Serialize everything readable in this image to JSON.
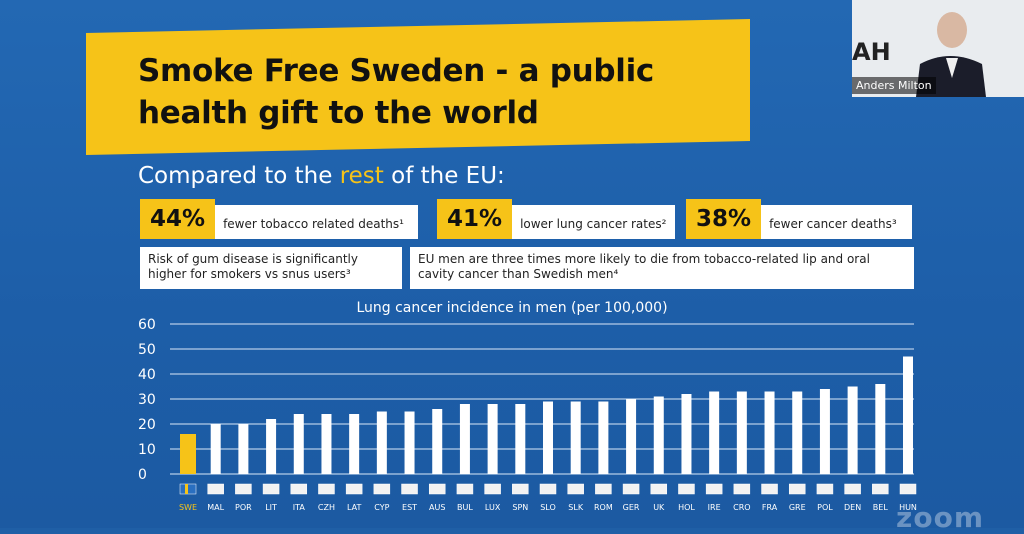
{
  "slide": {
    "title": "Smoke Free Sweden - a public\nhealth gift to the world",
    "subtitle_prefix": "Compared to the ",
    "subtitle_highlight": "rest",
    "subtitle_suffix": " of the EU:",
    "stats": [
      {
        "value": "44%",
        "label": "fewer tobacco related deaths¹"
      },
      {
        "value": "41%",
        "label": "lower lung cancer rates²"
      },
      {
        "value": "38%",
        "label": "fewer cancer deaths³"
      }
    ],
    "notes": [
      "Risk of gum disease is significantly higher for smokers vs snus users³",
      "EU men are three times more likely to die from tobacco-related lip and oral cavity cancer than Swedish men⁴"
    ],
    "colors": {
      "background": "#1f5fa6",
      "accent": "#f6c318",
      "bar": "#ffffff",
      "highlight_bar": "#f6c318"
    }
  },
  "chart_data": {
    "type": "bar",
    "title": "Lung cancer incidence in men (per 100,000)",
    "categories": [
      "SWE",
      "MAL",
      "POR",
      "LIT",
      "ITA",
      "CZH",
      "LAT",
      "CYP",
      "EST",
      "AUS",
      "BUL",
      "LUX",
      "SPN",
      "SLO",
      "SLK",
      "ROM",
      "GER",
      "UK",
      "HOL",
      "IRE",
      "CRO",
      "FRA",
      "GRE",
      "POL",
      "DEN",
      "BEL",
      "HUN"
    ],
    "values": [
      16,
      20,
      20,
      22,
      24,
      24,
      24,
      25,
      25,
      26,
      28,
      28,
      28,
      29,
      29,
      29,
      30,
      31,
      32,
      33,
      33,
      33,
      33,
      34,
      35,
      36,
      47
    ],
    "highlight": "SWE",
    "ylim": [
      0,
      60
    ],
    "yticks": [
      0,
      10,
      20,
      30,
      40,
      50,
      60
    ],
    "grid": true
  },
  "zoom": {
    "speaker_name": "Anders Milton",
    "speaker_logo": "AH",
    "watermark": "zoom"
  }
}
